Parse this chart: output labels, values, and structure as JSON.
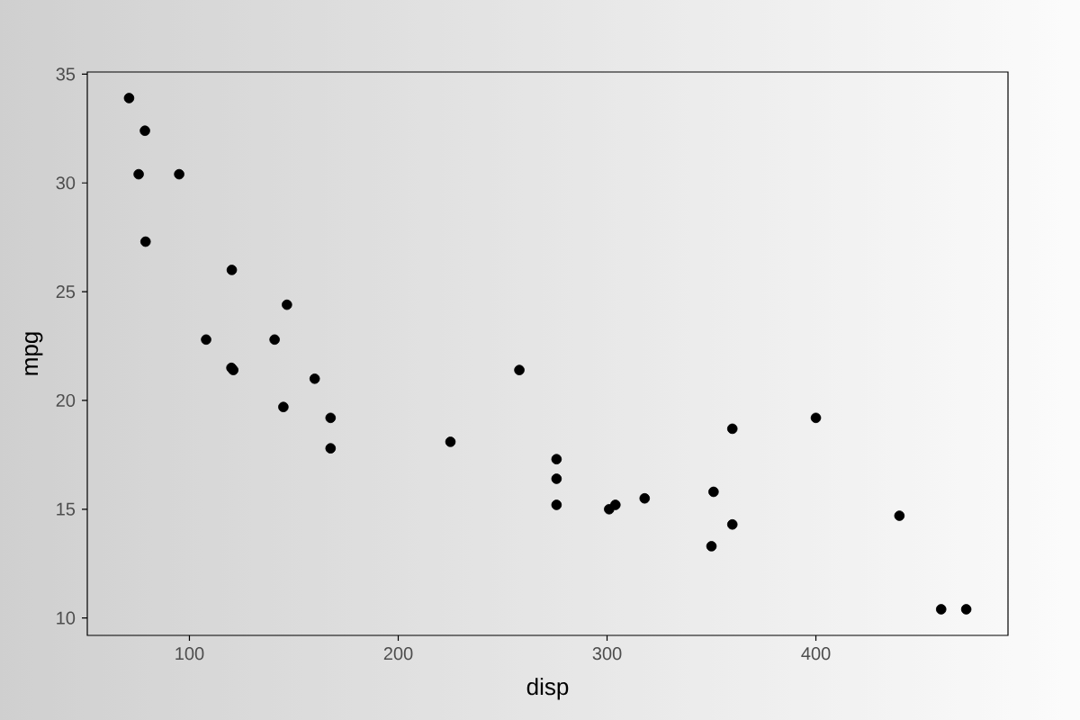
{
  "chart_data": {
    "type": "scatter",
    "xlabel": "disp",
    "ylabel": "mpg",
    "color": "#000000",
    "marker": "circle",
    "x": [
      160,
      108,
      258,
      360,
      225,
      360,
      146.7,
      140.8,
      167.6,
      167.6,
      275.8,
      275.8,
      275.8,
      472,
      460,
      440,
      78.7,
      75.7,
      71.1,
      120.1,
      318,
      304,
      350,
      400,
      79,
      120.3,
      95.1,
      351,
      145,
      301,
      121
    ],
    "values": [
      21.0,
      22.8,
      21.4,
      18.7,
      18.1,
      14.3,
      24.4,
      22.8,
      19.2,
      17.8,
      16.4,
      17.3,
      15.2,
      10.4,
      10.4,
      14.7,
      32.4,
      30.4,
      33.9,
      21.5,
      15.5,
      15.2,
      13.3,
      19.2,
      27.3,
      26.0,
      30.4,
      15.8,
      19.7,
      15.0,
      21.4
    ],
    "xlim": [
      51.1,
      492
    ],
    "ylim": [
      9.2,
      35.1
    ],
    "xticks": [
      100,
      200,
      300,
      400
    ],
    "yticks": [
      10,
      15,
      20,
      25,
      30,
      35
    ]
  }
}
